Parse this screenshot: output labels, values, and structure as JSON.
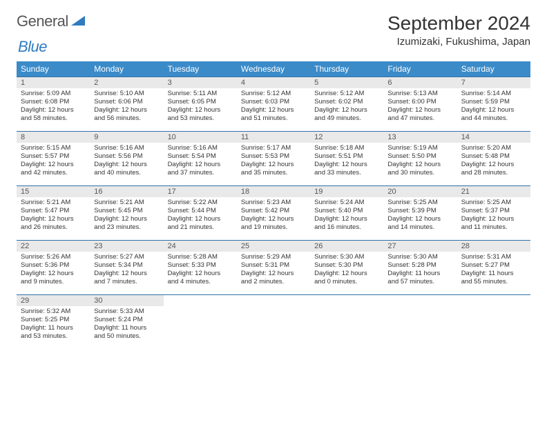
{
  "brand": {
    "part1": "General",
    "part2": "Blue"
  },
  "title": "September 2024",
  "location": "Izumizaki, Fukushima, Japan",
  "colors": {
    "header_bg": "#3b8bc9",
    "header_text": "#ffffff",
    "daynum_bg": "#e9e9e9",
    "week_border": "#2f6fa8",
    "brand_blue": "#2f7bbf"
  },
  "dayHeaders": [
    "Sunday",
    "Monday",
    "Tuesday",
    "Wednesday",
    "Thursday",
    "Friday",
    "Saturday"
  ],
  "weeks": [
    [
      {
        "n": "1",
        "sr": "Sunrise: 5:09 AM",
        "ss": "Sunset: 6:08 PM",
        "d1": "Daylight: 12 hours",
        "d2": "and 58 minutes."
      },
      {
        "n": "2",
        "sr": "Sunrise: 5:10 AM",
        "ss": "Sunset: 6:06 PM",
        "d1": "Daylight: 12 hours",
        "d2": "and 56 minutes."
      },
      {
        "n": "3",
        "sr": "Sunrise: 5:11 AM",
        "ss": "Sunset: 6:05 PM",
        "d1": "Daylight: 12 hours",
        "d2": "and 53 minutes."
      },
      {
        "n": "4",
        "sr": "Sunrise: 5:12 AM",
        "ss": "Sunset: 6:03 PM",
        "d1": "Daylight: 12 hours",
        "d2": "and 51 minutes."
      },
      {
        "n": "5",
        "sr": "Sunrise: 5:12 AM",
        "ss": "Sunset: 6:02 PM",
        "d1": "Daylight: 12 hours",
        "d2": "and 49 minutes."
      },
      {
        "n": "6",
        "sr": "Sunrise: 5:13 AM",
        "ss": "Sunset: 6:00 PM",
        "d1": "Daylight: 12 hours",
        "d2": "and 47 minutes."
      },
      {
        "n": "7",
        "sr": "Sunrise: 5:14 AM",
        "ss": "Sunset: 5:59 PM",
        "d1": "Daylight: 12 hours",
        "d2": "and 44 minutes."
      }
    ],
    [
      {
        "n": "8",
        "sr": "Sunrise: 5:15 AM",
        "ss": "Sunset: 5:57 PM",
        "d1": "Daylight: 12 hours",
        "d2": "and 42 minutes."
      },
      {
        "n": "9",
        "sr": "Sunrise: 5:16 AM",
        "ss": "Sunset: 5:56 PM",
        "d1": "Daylight: 12 hours",
        "d2": "and 40 minutes."
      },
      {
        "n": "10",
        "sr": "Sunrise: 5:16 AM",
        "ss": "Sunset: 5:54 PM",
        "d1": "Daylight: 12 hours",
        "d2": "and 37 minutes."
      },
      {
        "n": "11",
        "sr": "Sunrise: 5:17 AM",
        "ss": "Sunset: 5:53 PM",
        "d1": "Daylight: 12 hours",
        "d2": "and 35 minutes."
      },
      {
        "n": "12",
        "sr": "Sunrise: 5:18 AM",
        "ss": "Sunset: 5:51 PM",
        "d1": "Daylight: 12 hours",
        "d2": "and 33 minutes."
      },
      {
        "n": "13",
        "sr": "Sunrise: 5:19 AM",
        "ss": "Sunset: 5:50 PM",
        "d1": "Daylight: 12 hours",
        "d2": "and 30 minutes."
      },
      {
        "n": "14",
        "sr": "Sunrise: 5:20 AM",
        "ss": "Sunset: 5:48 PM",
        "d1": "Daylight: 12 hours",
        "d2": "and 28 minutes."
      }
    ],
    [
      {
        "n": "15",
        "sr": "Sunrise: 5:21 AM",
        "ss": "Sunset: 5:47 PM",
        "d1": "Daylight: 12 hours",
        "d2": "and 26 minutes."
      },
      {
        "n": "16",
        "sr": "Sunrise: 5:21 AM",
        "ss": "Sunset: 5:45 PM",
        "d1": "Daylight: 12 hours",
        "d2": "and 23 minutes."
      },
      {
        "n": "17",
        "sr": "Sunrise: 5:22 AM",
        "ss": "Sunset: 5:44 PM",
        "d1": "Daylight: 12 hours",
        "d2": "and 21 minutes."
      },
      {
        "n": "18",
        "sr": "Sunrise: 5:23 AM",
        "ss": "Sunset: 5:42 PM",
        "d1": "Daylight: 12 hours",
        "d2": "and 19 minutes."
      },
      {
        "n": "19",
        "sr": "Sunrise: 5:24 AM",
        "ss": "Sunset: 5:40 PM",
        "d1": "Daylight: 12 hours",
        "d2": "and 16 minutes."
      },
      {
        "n": "20",
        "sr": "Sunrise: 5:25 AM",
        "ss": "Sunset: 5:39 PM",
        "d1": "Daylight: 12 hours",
        "d2": "and 14 minutes."
      },
      {
        "n": "21",
        "sr": "Sunrise: 5:25 AM",
        "ss": "Sunset: 5:37 PM",
        "d1": "Daylight: 12 hours",
        "d2": "and 11 minutes."
      }
    ],
    [
      {
        "n": "22",
        "sr": "Sunrise: 5:26 AM",
        "ss": "Sunset: 5:36 PM",
        "d1": "Daylight: 12 hours",
        "d2": "and 9 minutes."
      },
      {
        "n": "23",
        "sr": "Sunrise: 5:27 AM",
        "ss": "Sunset: 5:34 PM",
        "d1": "Daylight: 12 hours",
        "d2": "and 7 minutes."
      },
      {
        "n": "24",
        "sr": "Sunrise: 5:28 AM",
        "ss": "Sunset: 5:33 PM",
        "d1": "Daylight: 12 hours",
        "d2": "and 4 minutes."
      },
      {
        "n": "25",
        "sr": "Sunrise: 5:29 AM",
        "ss": "Sunset: 5:31 PM",
        "d1": "Daylight: 12 hours",
        "d2": "and 2 minutes."
      },
      {
        "n": "26",
        "sr": "Sunrise: 5:30 AM",
        "ss": "Sunset: 5:30 PM",
        "d1": "Daylight: 12 hours",
        "d2": "and 0 minutes."
      },
      {
        "n": "27",
        "sr": "Sunrise: 5:30 AM",
        "ss": "Sunset: 5:28 PM",
        "d1": "Daylight: 11 hours",
        "d2": "and 57 minutes."
      },
      {
        "n": "28",
        "sr": "Sunrise: 5:31 AM",
        "ss": "Sunset: 5:27 PM",
        "d1": "Daylight: 11 hours",
        "d2": "and 55 minutes."
      }
    ],
    [
      {
        "n": "29",
        "sr": "Sunrise: 5:32 AM",
        "ss": "Sunset: 5:25 PM",
        "d1": "Daylight: 11 hours",
        "d2": "and 53 minutes."
      },
      {
        "n": "30",
        "sr": "Sunrise: 5:33 AM",
        "ss": "Sunset: 5:24 PM",
        "d1": "Daylight: 11 hours",
        "d2": "and 50 minutes."
      },
      {
        "empty": true
      },
      {
        "empty": true
      },
      {
        "empty": true
      },
      {
        "empty": true
      },
      {
        "empty": true
      }
    ]
  ]
}
